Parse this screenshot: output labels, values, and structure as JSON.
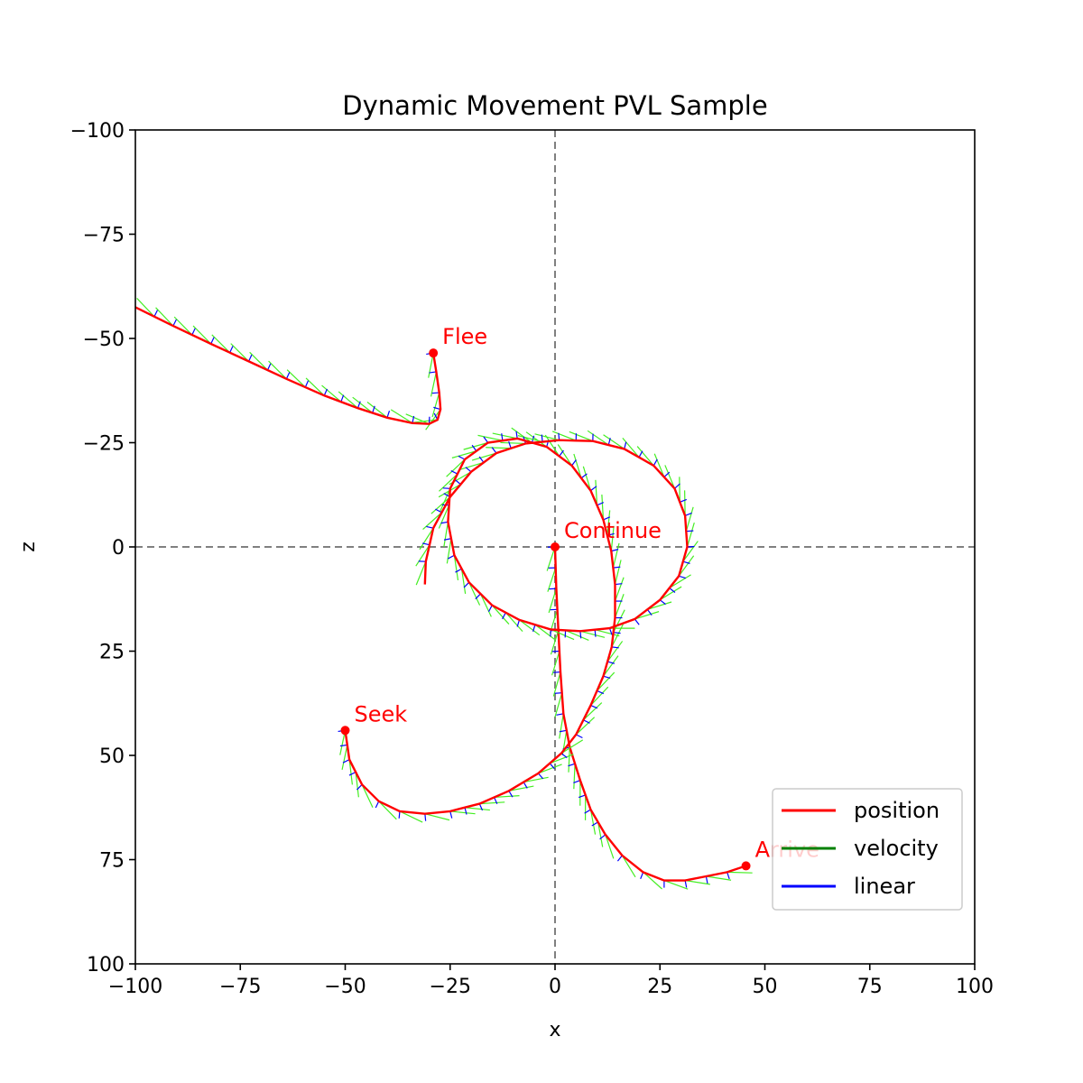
{
  "chart_data": {
    "type": "line",
    "title": "Dynamic Movement PVL Sample",
    "xlabel": "x",
    "ylabel": "z",
    "xlim": [
      -100,
      100
    ],
    "ylim": [
      -100,
      100
    ],
    "y_inverted": true,
    "xticks": [
      -100,
      -75,
      -50,
      -25,
      0,
      25,
      50,
      75,
      100
    ],
    "yticks": [
      -100,
      -75,
      -50,
      -25,
      0,
      25,
      50,
      75,
      100
    ],
    "xtick_labels": [
      "−100",
      "−75",
      "−50",
      "−25",
      "0",
      "25",
      "50",
      "75",
      "100"
    ],
    "ytick_labels": [
      "−100",
      "−75",
      "−50",
      "−25",
      "0",
      "25",
      "50",
      "75",
      "100"
    ],
    "reference_lines": {
      "x0": true,
      "z0": true,
      "style": "dashed",
      "color": "#808080"
    },
    "grid": false,
    "legend": {
      "placement": "bottom-right",
      "entries": [
        {
          "label": "position",
          "color": "#ff0000"
        },
        {
          "label": "velocity",
          "color": "#008000"
        },
        {
          "label": "linear",
          "color": "#0000ff"
        }
      ]
    },
    "colors": {
      "position": "#ff0000",
      "velocity_marks": "#44ee22",
      "linear_marks": "#0000ff",
      "reference": "#808080"
    },
    "series": [
      {
        "name": "Continue",
        "label_offset": [
          2,
          -3
        ],
        "points": [
          [
            0,
            0
          ],
          [
            0.3,
            10
          ],
          [
            0.8,
            20
          ],
          [
            1.3,
            30
          ],
          [
            2,
            40
          ],
          [
            3.5,
            48
          ],
          [
            6,
            56
          ],
          [
            8.5,
            63
          ],
          [
            12,
            69
          ],
          [
            16,
            74
          ],
          [
            21,
            78
          ],
          [
            26,
            80
          ],
          [
            31,
            80
          ],
          [
            36,
            79
          ],
          [
            41,
            78
          ],
          [
            45.5,
            76.5
          ]
        ],
        "end_point": [
          45.5,
          76.5
        ]
      },
      {
        "name": "Flee",
        "label_offset": [
          2,
          -3
        ],
        "points": [
          [
            -29,
            -46.5
          ],
          [
            -28.3,
            -42
          ],
          [
            -27.6,
            -37
          ],
          [
            -27.3,
            -33
          ],
          [
            -28,
            -30.5
          ],
          [
            -30,
            -29.5
          ],
          [
            -34,
            -29.7
          ],
          [
            -40,
            -31
          ],
          [
            -47,
            -33.3
          ],
          [
            -55,
            -36.3
          ],
          [
            -64,
            -40.3
          ],
          [
            -73,
            -44.5
          ],
          [
            -82,
            -48.7
          ],
          [
            -91,
            -53
          ],
          [
            -100,
            -57.5
          ]
        ],
        "end_point": [
          -29,
          -46.5
        ]
      },
      {
        "name": "Seek",
        "label_offset": [
          2,
          -3
        ],
        "points": [
          [
            -50,
            44
          ],
          [
            -49,
            51
          ],
          [
            -46,
            57
          ],
          [
            -42,
            61
          ],
          [
            -37,
            63.4
          ],
          [
            -31,
            64
          ],
          [
            -25,
            63.4
          ],
          [
            -18,
            61.6
          ],
          [
            -11,
            58.5
          ],
          [
            -4,
            54.3
          ],
          [
            1.5,
            49.5
          ],
          [
            5,
            45
          ],
          [
            8.5,
            38
          ],
          [
            11.5,
            31
          ],
          [
            13.5,
            24
          ],
          [
            14.3,
            17
          ],
          [
            14.3,
            9
          ],
          [
            13.4,
            1
          ],
          [
            11.5,
            -6.5
          ],
          [
            8.5,
            -13.5
          ],
          [
            4,
            -19.5
          ],
          [
            -2,
            -24
          ],
          [
            -9,
            -26
          ],
          [
            -16,
            -25
          ],
          [
            -21.5,
            -21
          ],
          [
            -25,
            -14
          ],
          [
            -25.5,
            -6
          ],
          [
            -24,
            2
          ],
          [
            -20.5,
            8.5
          ],
          [
            -15,
            14
          ],
          [
            -8.5,
            17.5
          ],
          [
            -1,
            19.8
          ],
          [
            6,
            20.2
          ],
          [
            13,
            19.5
          ],
          [
            19,
            17.3
          ],
          [
            25,
            12.7
          ],
          [
            29.5,
            7
          ],
          [
            31.5,
            0
          ],
          [
            31,
            -7.5
          ],
          [
            28.5,
            -14
          ],
          [
            23.5,
            -19.5
          ],
          [
            16.5,
            -23.5
          ],
          [
            9,
            -25.4
          ],
          [
            1,
            -25.6
          ],
          [
            -7,
            -24.8
          ],
          [
            -14,
            -22.5
          ],
          [
            -20,
            -18
          ],
          [
            -25,
            -12
          ],
          [
            -29,
            -4.5
          ],
          [
            -30.8,
            3.5
          ],
          [
            -31,
            9
          ]
        ],
        "end_point": [
          -50,
          44
        ]
      }
    ],
    "annotations": [
      {
        "text": "Continue",
        "color": "#ff0000"
      },
      {
        "text": "Flee",
        "color": "#ff0000"
      },
      {
        "text": "Seek",
        "color": "#ff0000"
      },
      {
        "text": "Arrive",
        "color": "#ff0000"
      }
    ],
    "arrive_point": [
      45.5,
      76.5
    ]
  }
}
